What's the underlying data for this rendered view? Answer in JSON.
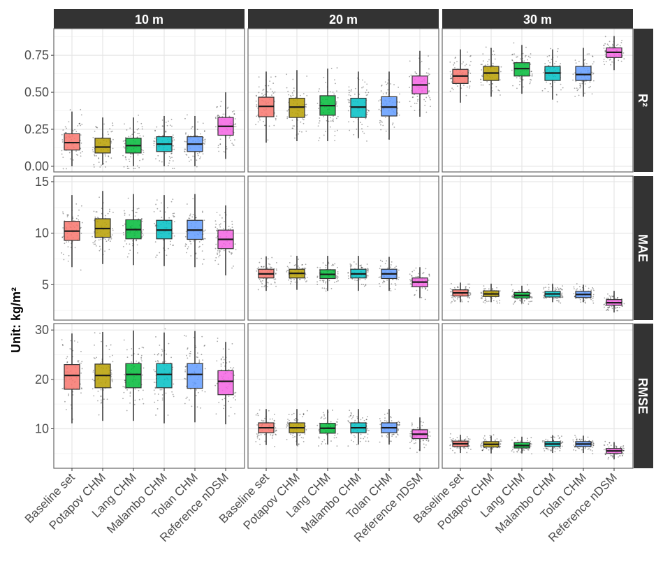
{
  "chart_data": {
    "type": "boxplot",
    "ylabel": "Unit: kg/m²",
    "xlabel": "",
    "facet_columns": [
      "10 m",
      "20 m",
      "30 m"
    ],
    "facet_rows": [
      "R²",
      "MAE",
      "RMSE"
    ],
    "categories": [
      "Baseline set",
      "Potapov CHM",
      "Lang CHM",
      "Malambo CHM",
      "Tolan CHM",
      "Reference nDSM"
    ],
    "colors": [
      "#F8766D",
      "#B79F00",
      "#00BA38",
      "#00BFC4",
      "#619CFF",
      "#F564E3"
    ],
    "grid": true,
    "jittered_points": true,
    "y_axes": [
      {
        "row": "R²",
        "ylim": [
          -0.038,
          0.93
        ],
        "ticks": [
          0,
          0.25,
          0.5,
          0.75
        ],
        "tick_labels": [
          "0.00",
          "0.25",
          "0.50",
          "0.75"
        ]
      },
      {
        "row": "MAE",
        "ylim": [
          1.56,
          15.54
        ],
        "ticks": [
          5,
          10,
          15
        ],
        "tick_labels": [
          "5",
          "10",
          "15"
        ]
      },
      {
        "row": "RMSE",
        "ylim": [
          2.0,
          31.3
        ],
        "ticks": [
          10,
          20,
          30
        ],
        "tick_labels": [
          "10",
          "20",
          "30"
        ]
      }
    ],
    "panels": [
      {
        "row": "R²",
        "col": "10 m",
        "boxes": [
          {
            "lower": 0.0,
            "q1": 0.11,
            "median": 0.16,
            "q3": 0.22,
            "upper": 0.37
          },
          {
            "lower": 0.01,
            "q1": 0.09,
            "median": 0.13,
            "q3": 0.19,
            "upper": 0.33
          },
          {
            "lower": 0.0,
            "q1": 0.09,
            "median": 0.14,
            "q3": 0.19,
            "upper": 0.33
          },
          {
            "lower": 0.0,
            "q1": 0.1,
            "median": 0.15,
            "q3": 0.2,
            "upper": 0.34
          },
          {
            "lower": 0.0,
            "q1": 0.1,
            "median": 0.15,
            "q3": 0.2,
            "upper": 0.34
          },
          {
            "lower": 0.05,
            "q1": 0.21,
            "median": 0.27,
            "q3": 0.33,
            "upper": 0.5
          }
        ]
      },
      {
        "row": "R²",
        "col": "20 m",
        "boxes": [
          {
            "lower": 0.16,
            "q1": 0.335,
            "median": 0.405,
            "q3": 0.467,
            "upper": 0.64
          },
          {
            "lower": 0.17,
            "q1": 0.33,
            "median": 0.4,
            "q3": 0.46,
            "upper": 0.65
          },
          {
            "lower": 0.17,
            "q1": 0.345,
            "median": 0.41,
            "q3": 0.477,
            "upper": 0.66
          },
          {
            "lower": 0.19,
            "q1": 0.33,
            "median": 0.4,
            "q3": 0.46,
            "upper": 0.64
          },
          {
            "lower": 0.18,
            "q1": 0.34,
            "median": 0.4,
            "q3": 0.47,
            "upper": 0.64
          },
          {
            "lower": 0.335,
            "q1": 0.49,
            "median": 0.55,
            "q3": 0.61,
            "upper": 0.78
          }
        ]
      },
      {
        "row": "R²",
        "col": "30 m",
        "boxes": [
          {
            "lower": 0.43,
            "q1": 0.56,
            "median": 0.61,
            "q3": 0.655,
            "upper": 0.79
          },
          {
            "lower": 0.47,
            "q1": 0.58,
            "median": 0.63,
            "q3": 0.675,
            "upper": 0.8
          },
          {
            "lower": 0.49,
            "q1": 0.61,
            "median": 0.66,
            "q3": 0.7,
            "upper": 0.82
          },
          {
            "lower": 0.45,
            "q1": 0.58,
            "median": 0.63,
            "q3": 0.675,
            "upper": 0.79
          },
          {
            "lower": 0.47,
            "q1": 0.58,
            "median": 0.62,
            "q3": 0.675,
            "upper": 0.8
          },
          {
            "lower": 0.65,
            "q1": 0.735,
            "median": 0.77,
            "q3": 0.8,
            "upper": 0.88
          }
        ]
      },
      {
        "row": "MAE",
        "col": "10 m",
        "boxes": [
          {
            "lower": 6.7,
            "q1": 9.3,
            "median": 10.2,
            "q3": 11.15,
            "upper": 13.7
          },
          {
            "lower": 7.0,
            "q1": 9.6,
            "median": 10.45,
            "q3": 11.4,
            "upper": 14.1
          },
          {
            "lower": 6.9,
            "q1": 9.45,
            "median": 10.35,
            "q3": 11.3,
            "upper": 13.8
          },
          {
            "lower": 6.8,
            "q1": 9.45,
            "median": 10.3,
            "q3": 11.25,
            "upper": 13.7
          },
          {
            "lower": 6.7,
            "q1": 9.4,
            "median": 10.3,
            "q3": 11.25,
            "upper": 13.8
          },
          {
            "lower": 5.9,
            "q1": 8.5,
            "median": 9.4,
            "q3": 10.3,
            "upper": 12.7
          }
        ]
      },
      {
        "row": "MAE",
        "col": "20 m",
        "boxes": [
          {
            "lower": 4.4,
            "q1": 5.65,
            "median": 6.05,
            "q3": 6.5,
            "upper": 7.75
          },
          {
            "lower": 4.5,
            "q1": 5.65,
            "median": 6.1,
            "q3": 6.5,
            "upper": 7.8
          },
          {
            "lower": 4.4,
            "q1": 5.6,
            "median": 6.0,
            "q3": 6.45,
            "upper": 7.8
          },
          {
            "lower": 4.4,
            "q1": 5.65,
            "median": 6.05,
            "q3": 6.5,
            "upper": 7.8
          },
          {
            "lower": 4.4,
            "q1": 5.6,
            "median": 6.05,
            "q3": 6.5,
            "upper": 7.7
          },
          {
            "lower": 3.7,
            "q1": 4.8,
            "median": 5.25,
            "q3": 5.65,
            "upper": 6.7
          }
        ]
      },
      {
        "row": "MAE",
        "col": "30 m",
        "boxes": [
          {
            "lower": 3.3,
            "q1": 3.9,
            "median": 4.2,
            "q3": 4.5,
            "upper": 5.2
          },
          {
            "lower": 3.3,
            "q1": 3.85,
            "median": 4.1,
            "q3": 4.4,
            "upper": 5.1
          },
          {
            "lower": 3.2,
            "q1": 3.7,
            "median": 3.95,
            "q3": 4.25,
            "upper": 4.9
          },
          {
            "lower": 3.3,
            "q1": 3.8,
            "median": 4.1,
            "q3": 4.35,
            "upper": 5.1
          },
          {
            "lower": 3.3,
            "q1": 3.75,
            "median": 4.05,
            "q3": 4.35,
            "upper": 5.0
          },
          {
            "lower": 2.3,
            "q1": 3.0,
            "median": 3.25,
            "q3": 3.55,
            "upper": 4.4
          }
        ]
      },
      {
        "row": "RMSE",
        "col": "10 m",
        "boxes": [
          {
            "lower": 11.1,
            "q1": 18.0,
            "median": 20.8,
            "q3": 23.0,
            "upper": 29.3
          },
          {
            "lower": 11.6,
            "q1": 18.3,
            "median": 20.8,
            "q3": 23.1,
            "upper": 29.6
          },
          {
            "lower": 11.6,
            "q1": 18.3,
            "median": 21.0,
            "q3": 23.2,
            "upper": 29.9
          },
          {
            "lower": 11.1,
            "q1": 18.3,
            "median": 21.0,
            "q3": 23.2,
            "upper": 29.5
          },
          {
            "lower": 11.3,
            "q1": 18.2,
            "median": 21.0,
            "q3": 23.2,
            "upper": 29.8
          },
          {
            "lower": 10.9,
            "q1": 16.9,
            "median": 19.6,
            "q3": 21.75,
            "upper": 27.6
          }
        ]
      },
      {
        "row": "RMSE",
        "col": "20 m",
        "boxes": [
          {
            "lower": 6.7,
            "q1": 9.2,
            "median": 10.2,
            "q3": 11.2,
            "upper": 14.0
          },
          {
            "lower": 6.6,
            "q1": 9.2,
            "median": 10.2,
            "q3": 11.2,
            "upper": 14.0
          },
          {
            "lower": 6.8,
            "q1": 9.1,
            "median": 10.1,
            "q3": 11.1,
            "upper": 13.9
          },
          {
            "lower": 6.8,
            "q1": 9.2,
            "median": 10.2,
            "q3": 11.2,
            "upper": 14.0
          },
          {
            "lower": 6.8,
            "q1": 9.2,
            "median": 10.2,
            "q3": 11.2,
            "upper": 14.0
          },
          {
            "lower": 5.5,
            "q1": 8.0,
            "median": 8.9,
            "q3": 9.8,
            "upper": 12.3
          }
        ]
      },
      {
        "row": "RMSE",
        "col": "30 m",
        "boxes": [
          {
            "lower": 5.1,
            "q1": 6.4,
            "median": 6.95,
            "q3": 7.5,
            "upper": 8.8
          },
          {
            "lower": 5.0,
            "q1": 6.3,
            "median": 6.85,
            "q3": 7.4,
            "upper": 8.6
          },
          {
            "lower": 5.0,
            "q1": 6.1,
            "median": 6.6,
            "q3": 7.2,
            "upper": 8.4
          },
          {
            "lower": 5.1,
            "q1": 6.4,
            "median": 6.9,
            "q3": 7.4,
            "upper": 8.7
          },
          {
            "lower": 5.1,
            "q1": 6.4,
            "median": 6.9,
            "q3": 7.4,
            "upper": 8.6
          },
          {
            "lower": 3.8,
            "q1": 5.0,
            "median": 5.5,
            "q3": 6.0,
            "upper": 7.3
          }
        ]
      }
    ]
  }
}
